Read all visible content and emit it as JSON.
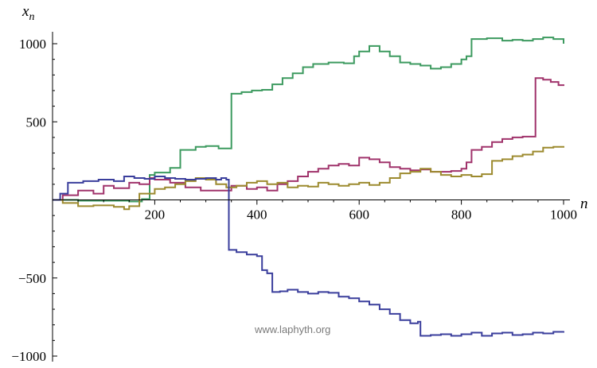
{
  "chart_data": {
    "type": "line",
    "title": "",
    "xlabel": "n",
    "ylabel_main": "x",
    "ylabel_sub": "n",
    "xlim": [
      0,
      1000
    ],
    "ylim": [
      -1000,
      1000
    ],
    "xticks": [
      200,
      400,
      600,
      800,
      1000
    ],
    "xtick_labels": [
      "200",
      "400",
      "600",
      "800",
      "1000"
    ],
    "yticks": [
      -1000,
      -500,
      500,
      1000
    ],
    "ytick_labels": [
      "−1000",
      "−500",
      "500",
      "1000"
    ],
    "grid": false,
    "legend": "none",
    "watermark": "www.laphyth.org",
    "series": [
      {
        "color": "#3c9a5f",
        "points": [
          [
            0,
            0
          ],
          [
            20,
            0
          ],
          [
            50,
            -5
          ],
          [
            100,
            -5
          ],
          [
            150,
            -10
          ],
          [
            175,
            5
          ],
          [
            190,
            160
          ],
          [
            200,
            175
          ],
          [
            230,
            205
          ],
          [
            250,
            320
          ],
          [
            280,
            340
          ],
          [
            300,
            345
          ],
          [
            325,
            330
          ],
          [
            335,
            330
          ],
          [
            350,
            680
          ],
          [
            370,
            690
          ],
          [
            390,
            700
          ],
          [
            410,
            705
          ],
          [
            430,
            740
          ],
          [
            450,
            780
          ],
          [
            470,
            810
          ],
          [
            490,
            850
          ],
          [
            510,
            870
          ],
          [
            540,
            880
          ],
          [
            570,
            875
          ],
          [
            590,
            920
          ],
          [
            600,
            950
          ],
          [
            620,
            985
          ],
          [
            640,
            950
          ],
          [
            660,
            920
          ],
          [
            680,
            880
          ],
          [
            700,
            870
          ],
          [
            720,
            860
          ],
          [
            740,
            840
          ],
          [
            760,
            850
          ],
          [
            780,
            870
          ],
          [
            800,
            900
          ],
          [
            810,
            920
          ],
          [
            820,
            1030
          ],
          [
            850,
            1035
          ],
          [
            880,
            1020
          ],
          [
            900,
            1025
          ],
          [
            920,
            1020
          ],
          [
            940,
            1030
          ],
          [
            960,
            1040
          ],
          [
            980,
            1030
          ],
          [
            1000,
            1000
          ]
        ]
      },
      {
        "color": "#a0336b",
        "points": [
          [
            0,
            0
          ],
          [
            20,
            30
          ],
          [
            50,
            60
          ],
          [
            80,
            40
          ],
          [
            100,
            90
          ],
          [
            120,
            75
          ],
          [
            150,
            110
          ],
          [
            170,
            100
          ],
          [
            190,
            140
          ],
          [
            200,
            130
          ],
          [
            230,
            110
          ],
          [
            260,
            80
          ],
          [
            290,
            60
          ],
          [
            320,
            60
          ],
          [
            350,
            90
          ],
          [
            380,
            70
          ],
          [
            400,
            80
          ],
          [
            420,
            60
          ],
          [
            440,
            100
          ],
          [
            460,
            120
          ],
          [
            480,
            150
          ],
          [
            500,
            180
          ],
          [
            520,
            200
          ],
          [
            540,
            220
          ],
          [
            560,
            230
          ],
          [
            580,
            220
          ],
          [
            600,
            270
          ],
          [
            620,
            260
          ],
          [
            640,
            240
          ],
          [
            660,
            210
          ],
          [
            680,
            200
          ],
          [
            700,
            190
          ],
          [
            720,
            195
          ],
          [
            740,
            180
          ],
          [
            760,
            180
          ],
          [
            780,
            185
          ],
          [
            800,
            200
          ],
          [
            810,
            240
          ],
          [
            820,
            320
          ],
          [
            840,
            340
          ],
          [
            860,
            370
          ],
          [
            880,
            390
          ],
          [
            900,
            400
          ],
          [
            920,
            405
          ],
          [
            940,
            405
          ],
          [
            945,
            780
          ],
          [
            960,
            770
          ],
          [
            975,
            755
          ],
          [
            990,
            735
          ],
          [
            1000,
            740
          ]
        ]
      },
      {
        "color": "#9c8a2e",
        "points": [
          [
            0,
            0
          ],
          [
            20,
            -20
          ],
          [
            50,
            -40
          ],
          [
            80,
            -35
          ],
          [
            120,
            -45
          ],
          [
            140,
            -60
          ],
          [
            150,
            -40
          ],
          [
            170,
            40
          ],
          [
            200,
            70
          ],
          [
            220,
            80
          ],
          [
            240,
            100
          ],
          [
            260,
            120
          ],
          [
            280,
            140
          ],
          [
            300,
            130
          ],
          [
            320,
            100
          ],
          [
            340,
            80
          ],
          [
            360,
            90
          ],
          [
            380,
            110
          ],
          [
            400,
            120
          ],
          [
            420,
            100
          ],
          [
            440,
            110
          ],
          [
            460,
            80
          ],
          [
            480,
            90
          ],
          [
            500,
            85
          ],
          [
            520,
            110
          ],
          [
            540,
            100
          ],
          [
            560,
            90
          ],
          [
            580,
            100
          ],
          [
            600,
            110
          ],
          [
            620,
            95
          ],
          [
            640,
            110
          ],
          [
            660,
            140
          ],
          [
            680,
            170
          ],
          [
            700,
            180
          ],
          [
            720,
            200
          ],
          [
            740,
            180
          ],
          [
            760,
            160
          ],
          [
            780,
            150
          ],
          [
            800,
            160
          ],
          [
            820,
            150
          ],
          [
            840,
            165
          ],
          [
            860,
            250
          ],
          [
            880,
            260
          ],
          [
            900,
            280
          ],
          [
            920,
            290
          ],
          [
            940,
            310
          ],
          [
            960,
            335
          ],
          [
            980,
            340
          ],
          [
            1000,
            345
          ]
        ]
      },
      {
        "color": "#3a3e9c",
        "points": [
          [
            0,
            0
          ],
          [
            15,
            40
          ],
          [
            30,
            110
          ],
          [
            60,
            120
          ],
          [
            90,
            130
          ],
          [
            120,
            120
          ],
          [
            140,
            150
          ],
          [
            160,
            140
          ],
          [
            180,
            135
          ],
          [
            200,
            150
          ],
          [
            220,
            140
          ],
          [
            240,
            135
          ],
          [
            260,
            130
          ],
          [
            280,
            135
          ],
          [
            300,
            140
          ],
          [
            320,
            130
          ],
          [
            330,
            140
          ],
          [
            340,
            130
          ],
          [
            345,
            -320
          ],
          [
            360,
            -335
          ],
          [
            380,
            -350
          ],
          [
            400,
            -360
          ],
          [
            410,
            -450
          ],
          [
            420,
            -470
          ],
          [
            430,
            -590
          ],
          [
            445,
            -585
          ],
          [
            460,
            -575
          ],
          [
            480,
            -590
          ],
          [
            500,
            -600
          ],
          [
            520,
            -590
          ],
          [
            540,
            -595
          ],
          [
            560,
            -620
          ],
          [
            580,
            -630
          ],
          [
            600,
            -650
          ],
          [
            620,
            -670
          ],
          [
            640,
            -700
          ],
          [
            660,
            -730
          ],
          [
            680,
            -770
          ],
          [
            700,
            -790
          ],
          [
            715,
            -780
          ],
          [
            720,
            -870
          ],
          [
            740,
            -865
          ],
          [
            760,
            -860
          ],
          [
            780,
            -870
          ],
          [
            800,
            -860
          ],
          [
            820,
            -850
          ],
          [
            840,
            -870
          ],
          [
            860,
            -855
          ],
          [
            880,
            -850
          ],
          [
            900,
            -865
          ],
          [
            920,
            -860
          ],
          [
            940,
            -850
          ],
          [
            960,
            -855
          ],
          [
            980,
            -845
          ],
          [
            1000,
            -840
          ]
        ]
      }
    ]
  }
}
